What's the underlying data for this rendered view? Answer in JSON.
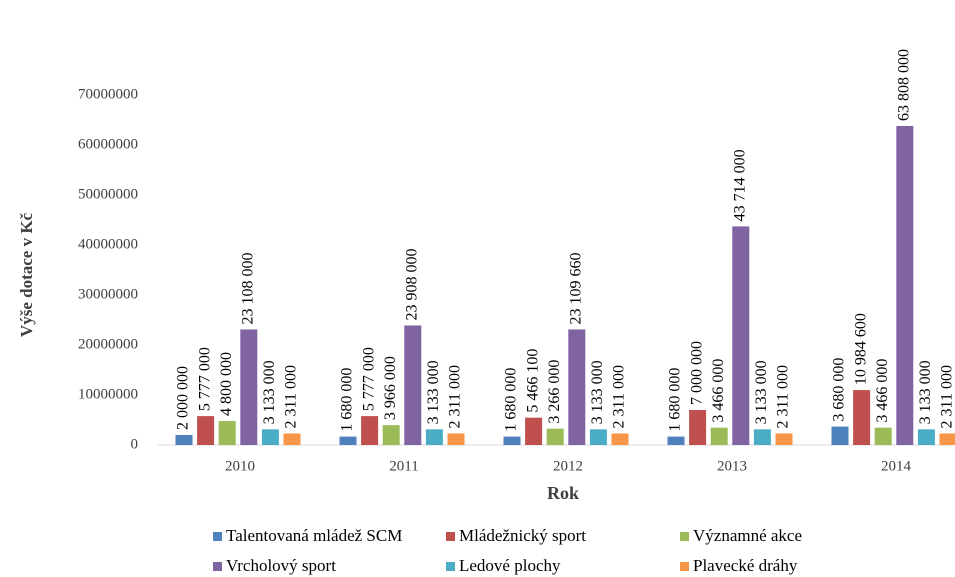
{
  "chart_data": {
    "type": "bar",
    "x_label": "Rok",
    "y_label": "Výše dotace v Kč",
    "categories": [
      "2010",
      "2011",
      "2012",
      "2013",
      "2014"
    ],
    "series": [
      {
        "name": "Talentovaná mládež SCM",
        "color": "#4f81bd",
        "values": [
          2000000,
          1680000,
          1680000,
          1680000,
          3680000
        ],
        "value_labels": [
          "2 000 000",
          "1 680 000",
          "1 680 000",
          "1 680 000",
          "3 680 000"
        ]
      },
      {
        "name": "Mládežnický sport",
        "color": "#c0504d",
        "values": [
          5777000,
          5777000,
          5466100,
          7000000,
          10984600
        ],
        "value_labels": [
          "5 777 000",
          "5 777 000",
          "5 466 100",
          "7 000 000",
          "10 984 600"
        ]
      },
      {
        "name": "Významné akce",
        "color": "#9bbb59",
        "values": [
          4800000,
          3966000,
          3266000,
          3466000,
          3466000
        ],
        "value_labels": [
          "4 800 000",
          "3 966 000",
          "3 266 000",
          "3 466 000",
          "3 466 000"
        ]
      },
      {
        "name": "Vrcholový sport",
        "color": "#8064a2",
        "values": [
          23108000,
          23908000,
          23109660,
          43714000,
          63808000
        ],
        "value_labels": [
          "23 108 000",
          "23 908 000",
          "23 109 660",
          "43 714 000",
          "63 808 000"
        ]
      },
      {
        "name": "Ledové plochy",
        "color": "#4bacc6",
        "values": [
          3133000,
          3133000,
          3133000,
          3133000,
          3133000
        ],
        "value_labels": [
          "3 133 000",
          "3 133 000",
          "3 133 000",
          "3 133 000",
          "3 133 000"
        ]
      },
      {
        "name": "Plavecké dráhy",
        "color": "#f79646",
        "values": [
          2311000,
          2311000,
          2311000,
          2311000,
          2311000
        ],
        "value_labels": [
          "2 311 000",
          "2 311 000",
          "2 311 000",
          "2 311 000",
          "2 311 000"
        ]
      }
    ],
    "ylim": [
      0,
      70000000
    ],
    "yticks": [
      0,
      10000000,
      20000000,
      30000000,
      40000000,
      50000000,
      60000000,
      70000000
    ],
    "legend": "bottom"
  }
}
